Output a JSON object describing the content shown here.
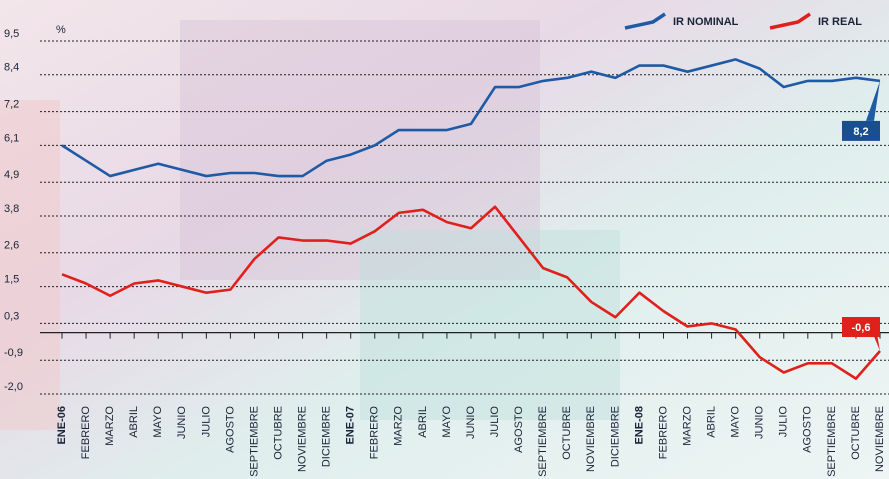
{
  "chart_data": {
    "type": "line",
    "y_unit": "%",
    "categories": [
      "ENE-06",
      "FEBRERO",
      "MARZO",
      "ABRIL",
      "MAYO",
      "JUNIO",
      "JULIO",
      "AGOSTO",
      "SEPTIEMBRE",
      "OCTUBRE",
      "NOVIEMBRE",
      "DICIEMBRE",
      "ENE-07",
      "FEBRERO",
      "MARZO",
      "ABRIL",
      "MAYO",
      "JUNIO",
      "JULIO",
      "AGOSTO",
      "SEPTIEMBRE",
      "OCTUBRE",
      "NOVIEMBRE",
      "DICIEMBRE",
      "ENE-08",
      "FEBRERO",
      "MARZO",
      "ABRIL",
      "MAYO",
      "JUNIO",
      "JULIO",
      "AGOSTO",
      "SEPTIEMBRE",
      "OCTUBRE",
      "NOVIEMBRE"
    ],
    "series": [
      {
        "name": "IR NOMINAL",
        "color": "#1f5aa6",
        "values": [
          6.1,
          5.6,
          5.1,
          5.3,
          5.5,
          5.3,
          5.1,
          5.2,
          5.2,
          5.1,
          5.1,
          5.6,
          5.8,
          6.1,
          6.6,
          6.6,
          6.6,
          6.8,
          8.0,
          8.0,
          8.2,
          8.3,
          8.5,
          8.3,
          8.7,
          8.7,
          8.5,
          8.7,
          8.9,
          8.6,
          8.0,
          8.2,
          8.2,
          8.3,
          8.2
        ],
        "value_labels": [
          null,
          null,
          null,
          null,
          null,
          null,
          null,
          null,
          null,
          null,
          null,
          null,
          null,
          null,
          null,
          null,
          null,
          null,
          null,
          null,
          null,
          null,
          null,
          null,
          null,
          null,
          null,
          null,
          null,
          null,
          null,
          null,
          null,
          null,
          "8,2"
        ]
      },
      {
        "name": "IR REAL",
        "color": "#e0201b",
        "values": [
          1.9,
          1.6,
          1.2,
          1.6,
          1.7,
          1.5,
          1.3,
          1.4,
          2.4,
          3.1,
          3.0,
          3.0,
          2.9,
          3.3,
          3.9,
          4.0,
          3.6,
          3.4,
          4.1,
          3.1,
          2.1,
          1.8,
          1.0,
          0.5,
          1.3,
          0.7,
          0.2,
          0.3,
          0.1,
          -0.8,
          -1.3,
          -1.0,
          -1.0,
          -1.5,
          -0.6
        ],
        "value_labels": [
          null,
          null,
          null,
          null,
          null,
          null,
          null,
          null,
          null,
          null,
          null,
          null,
          null,
          null,
          null,
          null,
          null,
          null,
          null,
          null,
          null,
          null,
          null,
          null,
          null,
          null,
          null,
          null,
          null,
          null,
          null,
          null,
          null,
          null,
          "-0,6"
        ]
      }
    ],
    "ylim": [
      -2.0,
      9.5
    ],
    "yticks": [
      {
        "value": 9.5,
        "label": "9,5"
      },
      {
        "value": 8.4,
        "label": "8,4"
      },
      {
        "value": 7.2,
        "label": "7,2"
      },
      {
        "value": 6.1,
        "label": "6,1"
      },
      {
        "value": 4.9,
        "label": "4,9"
      },
      {
        "value": 3.8,
        "label": "3,8"
      },
      {
        "value": 2.6,
        "label": "2,6"
      },
      {
        "value": 1.5,
        "label": "1,5"
      },
      {
        "value": 0.3,
        "label": "0,3"
      },
      {
        "value": -0.9,
        "label": "-0,9"
      },
      {
        "value": -2.0,
        "label": "-2,0"
      }
    ],
    "grid": true,
    "legend": "top-right"
  }
}
